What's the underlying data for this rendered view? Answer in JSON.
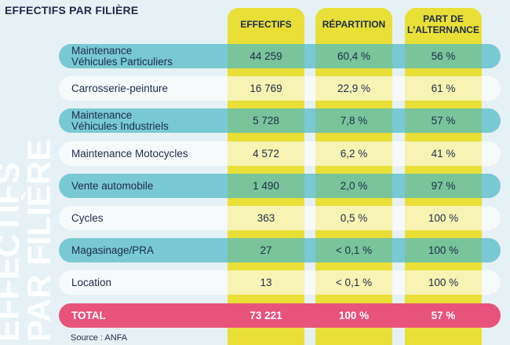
{
  "title": "EFFECTIFS PAR FILIÈRE",
  "watermark": {
    "line1": "EFFECTIFS",
    "line2": "PAR FILIÈRE"
  },
  "headers": {
    "col1": "EFFECTIFS",
    "col2": "RÉPARTITION",
    "col3": [
      "PART DE",
      "L'ALTERNANCE"
    ]
  },
  "rows": [
    {
      "label": [
        "Maintenance",
        "Véhicules Particuliers"
      ],
      "effectifs": "44 259",
      "repartition": "60,4 %",
      "alternance": "56 %"
    },
    {
      "label": [
        "Carrosserie-peinture"
      ],
      "effectifs": "16 769",
      "repartition": "22,9 %",
      "alternance": "61 %"
    },
    {
      "label": [
        "Maintenance",
        "Véhicules Industriels"
      ],
      "effectifs": "5 728",
      "repartition": "7,8 %",
      "alternance": "57 %"
    },
    {
      "label": [
        "Maintenance Motocycles"
      ],
      "effectifs": "4 572",
      "repartition": "6,2 %",
      "alternance": "41 %"
    },
    {
      "label": [
        "Vente automobile"
      ],
      "effectifs": "1 490",
      "repartition": "2,0 %",
      "alternance": "97 %"
    },
    {
      "label": [
        "Cycles"
      ],
      "effectifs": "363",
      "repartition": "0,5 %",
      "alternance": "100 %"
    },
    {
      "label": [
        "Magasinage/PRA"
      ],
      "effectifs": "27",
      "repartition": "< 0,1 %",
      "alternance": "100 %"
    },
    {
      "label": [
        "Location"
      ],
      "effectifs": "13",
      "repartition": "< 0,1 %",
      "alternance": "100 %"
    }
  ],
  "total": {
    "label": "TOTAL",
    "effectifs": "73 221",
    "repartition": "100 %",
    "alternance": "57 %"
  },
  "source": "Source : ANFA",
  "colors": {
    "navy": "#1e2b4a",
    "yellow": "#e9df37",
    "teal": "#48b8c6",
    "pink": "#e8537b",
    "background": "#e6f1f5"
  }
}
